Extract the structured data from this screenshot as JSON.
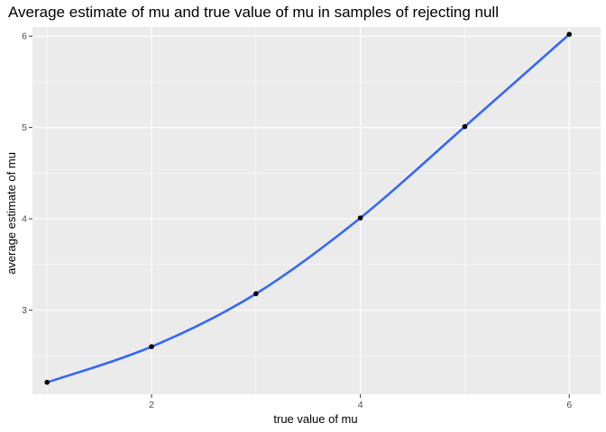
{
  "chart_data": {
    "type": "line",
    "title": "Average estimate of mu and true value of mu in samples of rejecting null",
    "xlabel": "true value of mu",
    "ylabel": "average estimate of mu",
    "x": [
      1,
      2,
      3,
      4,
      5,
      6
    ],
    "series": [
      {
        "values": [
          2.21,
          2.6,
          3.18,
          4.01,
          5.01,
          6.02
        ]
      }
    ],
    "xlim": [
      0.86,
      6.3
    ],
    "ylim": [
      2.08,
      6.1
    ],
    "x_ticks": [
      "2",
      "4",
      "6"
    ],
    "y_ticks": [
      "3",
      "4",
      "5",
      "6"
    ],
    "grid": true,
    "point_color": "#000000",
    "smooth_line_color": "#3366FF",
    "panel_background": "#EBEBEB",
    "grid_color": "#FFFFFF"
  }
}
